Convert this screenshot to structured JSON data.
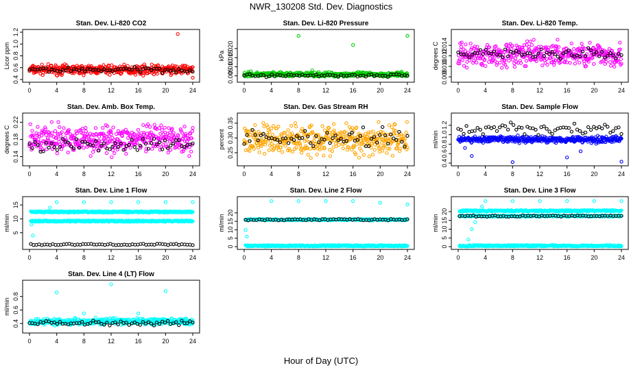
{
  "title": "NWR_130208 Std. Dev. Diagnostics",
  "xlabel": "Hour of Day (UTC)",
  "chart_data": [
    {
      "type": "scatter",
      "title": "Stan. Dev. Li-820 CO2",
      "ylabel": "Licor ppm",
      "color": "#ff0000",
      "xlim": [
        0,
        24
      ],
      "xticks": [
        0,
        4,
        8,
        12,
        16,
        20,
        24
      ],
      "ylim": [
        0.4,
        1.2
      ],
      "yticks": [
        "0.4",
        "0.6",
        "0.8",
        "1.0",
        "1.2"
      ],
      "series": [
        {
          "color": "#ff0000",
          "band": [
            0.45,
            0.68
          ],
          "outliers": [
            [
              21.8,
              1.17
            ],
            [
              24,
              0.43
            ]
          ]
        },
        {
          "color": "#000000",
          "band": [
            0.5,
            0.63
          ]
        }
      ]
    },
    {
      "type": "scatter",
      "title": "Stan. Dev. Li-820 Pressure",
      "ylabel": "kPa",
      "color": "#00cc00",
      "xlim": [
        0,
        24
      ],
      "xticks": [
        0,
        4,
        8,
        12,
        16,
        20,
        24
      ],
      "ylim": [
        0.003,
        0.029
      ],
      "yticks": [
        "0.005",
        "0.010",
        "0.015",
        "0.020"
      ],
      "series": [
        {
          "color": "#00cc00",
          "band": [
            0.004,
            0.0075
          ],
          "outliers": [
            [
              8,
              0.027
            ],
            [
              16,
              0.022
            ],
            [
              24,
              0.027
            ],
            [
              10,
              0.008
            ],
            [
              1,
              0.0075
            ]
          ]
        },
        {
          "color": "#000000",
          "band": [
            0.004,
            0.0065
          ]
        }
      ]
    },
    {
      "type": "scatter",
      "title": "Stan. Dev. Li-820 Temp.",
      "ylabel": "degrees C",
      "color": "#ff00ff",
      "xlim": [
        0,
        24
      ],
      "xticks": [
        0,
        4,
        8,
        12,
        16,
        20,
        24
      ],
      "ylim": [
        0.0075,
        0.0165
      ],
      "yticks": [
        "0.008",
        "0.010",
        "0.012",
        "0.014"
      ],
      "series": [
        {
          "color": "#ff00ff",
          "band": [
            0.009,
            0.0155
          ]
        },
        {
          "color": "#000000",
          "band": [
            0.0105,
            0.014
          ]
        }
      ]
    },
    {
      "type": "scatter",
      "title": "Stan. Dev. Amb. Box Temp.",
      "ylabel": "degrees C",
      "color": "#ff00ff",
      "xlim": [
        0,
        24
      ],
      "xticks": [
        0,
        4,
        8,
        12,
        16,
        20,
        24
      ],
      "ylim": [
        0.125,
        0.235
      ],
      "yticks": [
        "0.14",
        "0.18",
        "0.22"
      ],
      "series": [
        {
          "color": "#ff00ff",
          "band": [
            0.135,
            0.225
          ]
        },
        {
          "color": "#000000",
          "band": [
            0.145,
            0.19
          ]
        }
      ]
    },
    {
      "type": "scatter",
      "title": "Stan. Dev. Gas Stream RH",
      "ylabel": "percent",
      "color": "#ffa500",
      "xlim": [
        0,
        24
      ],
      "xticks": [
        0,
        4,
        8,
        12,
        16,
        20,
        24
      ],
      "ylim": [
        0.215,
        0.375
      ],
      "yticks": [
        "0.25",
        "0.30",
        "0.35"
      ],
      "series": [
        {
          "color": "#ffa500",
          "band": [
            0.22,
            0.37
          ]
        },
        {
          "color": "#000000",
          "band": [
            0.25,
            0.35
          ]
        }
      ]
    },
    {
      "type": "scatter",
      "title": "Stan. Dev. Sample Flow",
      "ylabel": "ml/min",
      "color": "#0000ff",
      "xlim": [
        0,
        24
      ],
      "xticks": [
        0,
        4,
        8,
        12,
        16,
        20,
        24
      ],
      "ylim": [
        0.4,
        1.4
      ],
      "yticks": [
        "0.4",
        "0.6",
        "0.8",
        "1.0",
        "1.2"
      ],
      "series": [
        {
          "color": "#0000ff",
          "band": [
            0.8,
            1.0
          ],
          "outliers": [
            [
              8,
              0.42
            ],
            [
              16,
              0.52
            ],
            [
              24,
              0.43
            ],
            [
              1,
              0.72
            ],
            [
              2,
              0.55
            ],
            [
              18,
              0.65
            ]
          ]
        },
        {
          "color": "#000000",
          "band": [
            0.95,
            1.3
          ]
        }
      ]
    },
    {
      "type": "scatter",
      "title": "Stan. Dev. Line 1 Flow",
      "ylabel": "ml/min",
      "color": "#00ffff",
      "xlim": [
        0,
        24
      ],
      "xticks": [
        0,
        4,
        8,
        12,
        16,
        20,
        24
      ],
      "ylim": [
        0,
        17
      ],
      "yticks": [
        "5",
        "10",
        "15"
      ],
      "series": [
        {
          "color": "#00ffff",
          "lines": [
            12.5,
            9.2
          ],
          "outliers": [
            [
              4,
              16
            ],
            [
              8,
              16
            ],
            [
              12,
              16
            ],
            [
              16,
              16
            ],
            [
              20,
              16
            ],
            [
              24,
              16
            ],
            [
              0.3,
              8
            ],
            [
              0.5,
              4
            ],
            [
              3,
              14
            ]
          ]
        },
        {
          "color": "#000000",
          "lines": [
            0.8
          ]
        }
      ]
    },
    {
      "type": "scatter",
      "title": "Stan. Dev. Line 2 Flow",
      "ylabel": "ml/min",
      "color": "#00ffff",
      "xlim": [
        0,
        24
      ],
      "xticks": [
        0,
        4,
        8,
        12,
        16,
        20,
        24
      ],
      "ylim": [
        0,
        28
      ],
      "yticks": [
        "0",
        "5",
        "10",
        "15",
        "20"
      ],
      "series": [
        {
          "color": "#00ffff",
          "lines": [
            16,
            0.5
          ],
          "outliers": [
            [
              4,
              27
            ],
            [
              8,
              27
            ],
            [
              12,
              27
            ],
            [
              16,
              27
            ],
            [
              20,
              26
            ],
            [
              24,
              25
            ],
            [
              0.2,
              10
            ],
            [
              0.4,
              6
            ]
          ]
        },
        {
          "color": "#000000",
          "lines": [
            16
          ]
        }
      ]
    },
    {
      "type": "scatter",
      "title": "Stan. Dev. Line 3 Flow",
      "ylabel": "ml/min",
      "color": "#00ffff",
      "xlim": [
        0,
        24
      ],
      "xticks": [
        0,
        4,
        8,
        12,
        16,
        20,
        24
      ],
      "ylim": [
        0,
        27
      ],
      "yticks": [
        "0",
        "5",
        "10",
        "15",
        "20"
      ],
      "series": [
        {
          "color": "#00ffff",
          "lines": [
            20.5,
            17.5,
            0.5
          ],
          "outliers": [
            [
              4,
              26
            ],
            [
              8,
              26
            ],
            [
              12,
              26
            ],
            [
              16,
              26
            ],
            [
              20,
              26
            ],
            [
              24,
              26
            ],
            [
              1.5,
              4
            ],
            [
              2,
              10
            ],
            [
              2.5,
              14
            ],
            [
              3.5,
              23
            ]
          ]
        },
        {
          "color": "#000000",
          "lines": [
            17.5
          ]
        }
      ]
    },
    {
      "type": "scatter",
      "title": "Stan. Dev. Line 4 (LT) Flow",
      "ylabel": "ml/min",
      "color": "#00ffff",
      "xlim": [
        0,
        24
      ],
      "xticks": [
        0,
        4,
        8,
        12,
        16,
        20,
        24
      ],
      "ylim": [
        0.3,
        1.0
      ],
      "yticks": [
        "0.4",
        "0.6",
        "0.8"
      ],
      "series": [
        {
          "color": "#00ffff",
          "band": [
            0.36,
            0.5
          ],
          "outliers": [
            [
              4,
              0.86
            ],
            [
              12,
              0.98
            ],
            [
              20,
              0.88
            ],
            [
              8,
              0.55
            ],
            [
              16,
              0.55
            ]
          ]
        },
        {
          "color": "#000000",
          "band": [
            0.36,
            0.46
          ]
        }
      ]
    }
  ]
}
